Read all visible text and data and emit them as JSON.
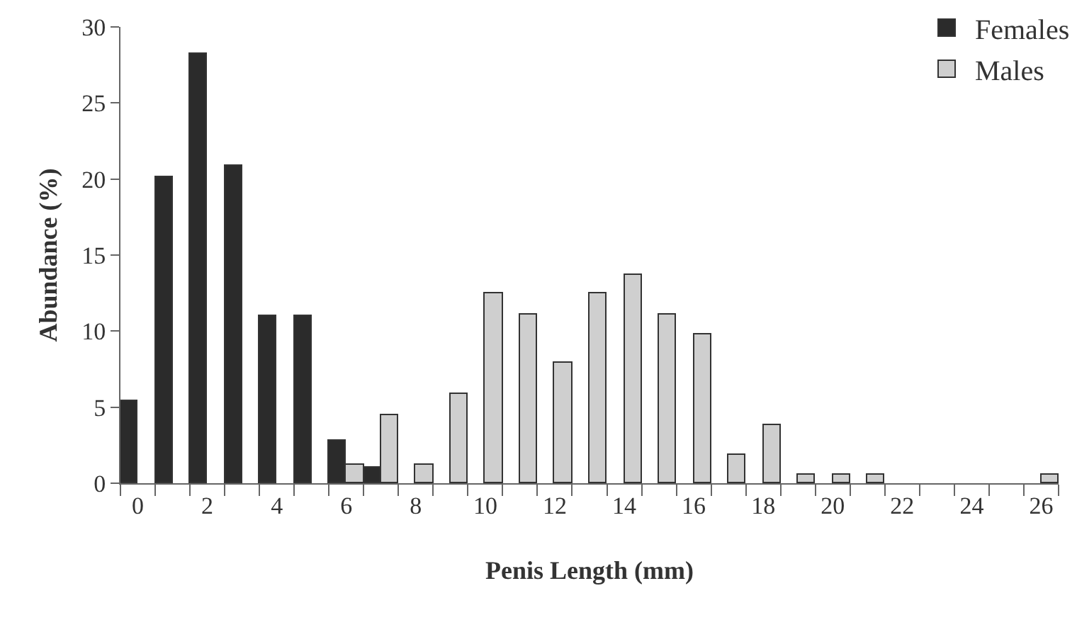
{
  "chart_data": {
    "type": "bar",
    "xlabel": "Penis Length (mm)",
    "ylabel": "Abundance (%)",
    "x": [
      0,
      1,
      2,
      3,
      4,
      5,
      6,
      7,
      8,
      9,
      10,
      11,
      12,
      13,
      14,
      15,
      16,
      17,
      18,
      19,
      20,
      21,
      22,
      23,
      24,
      25,
      26
    ],
    "series": [
      {
        "name": "Females",
        "color": "#2b2b2b",
        "values": [
          5.4,
          20.1,
          28.2,
          20.9,
          11,
          11,
          2.8,
          1.0,
          null,
          null,
          null,
          null,
          null,
          null,
          null,
          null,
          null,
          null,
          null,
          null,
          null,
          null,
          null,
          null,
          null,
          null,
          null
        ]
      },
      {
        "name": "Males",
        "color": "#cfcfcf",
        "values": [
          null,
          null,
          null,
          null,
          null,
          null,
          1.2,
          4.5,
          1.2,
          5.9,
          12.5,
          11.1,
          7.9,
          12.5,
          13.7,
          11.1,
          9.8,
          1.9,
          3.8,
          0.6,
          0.6,
          0.6,
          null,
          null,
          null,
          null,
          0.6
        ]
      }
    ],
    "xlim": [
      -0.5,
      26.5
    ],
    "xticks": [
      0,
      2,
      4,
      6,
      8,
      10,
      12,
      14,
      16,
      18,
      20,
      22,
      24,
      26
    ],
    "ylim": [
      0,
      30
    ],
    "yticks": [
      0,
      5,
      10,
      15,
      20,
      25,
      30
    ],
    "grid": false,
    "legend": "top right"
  }
}
